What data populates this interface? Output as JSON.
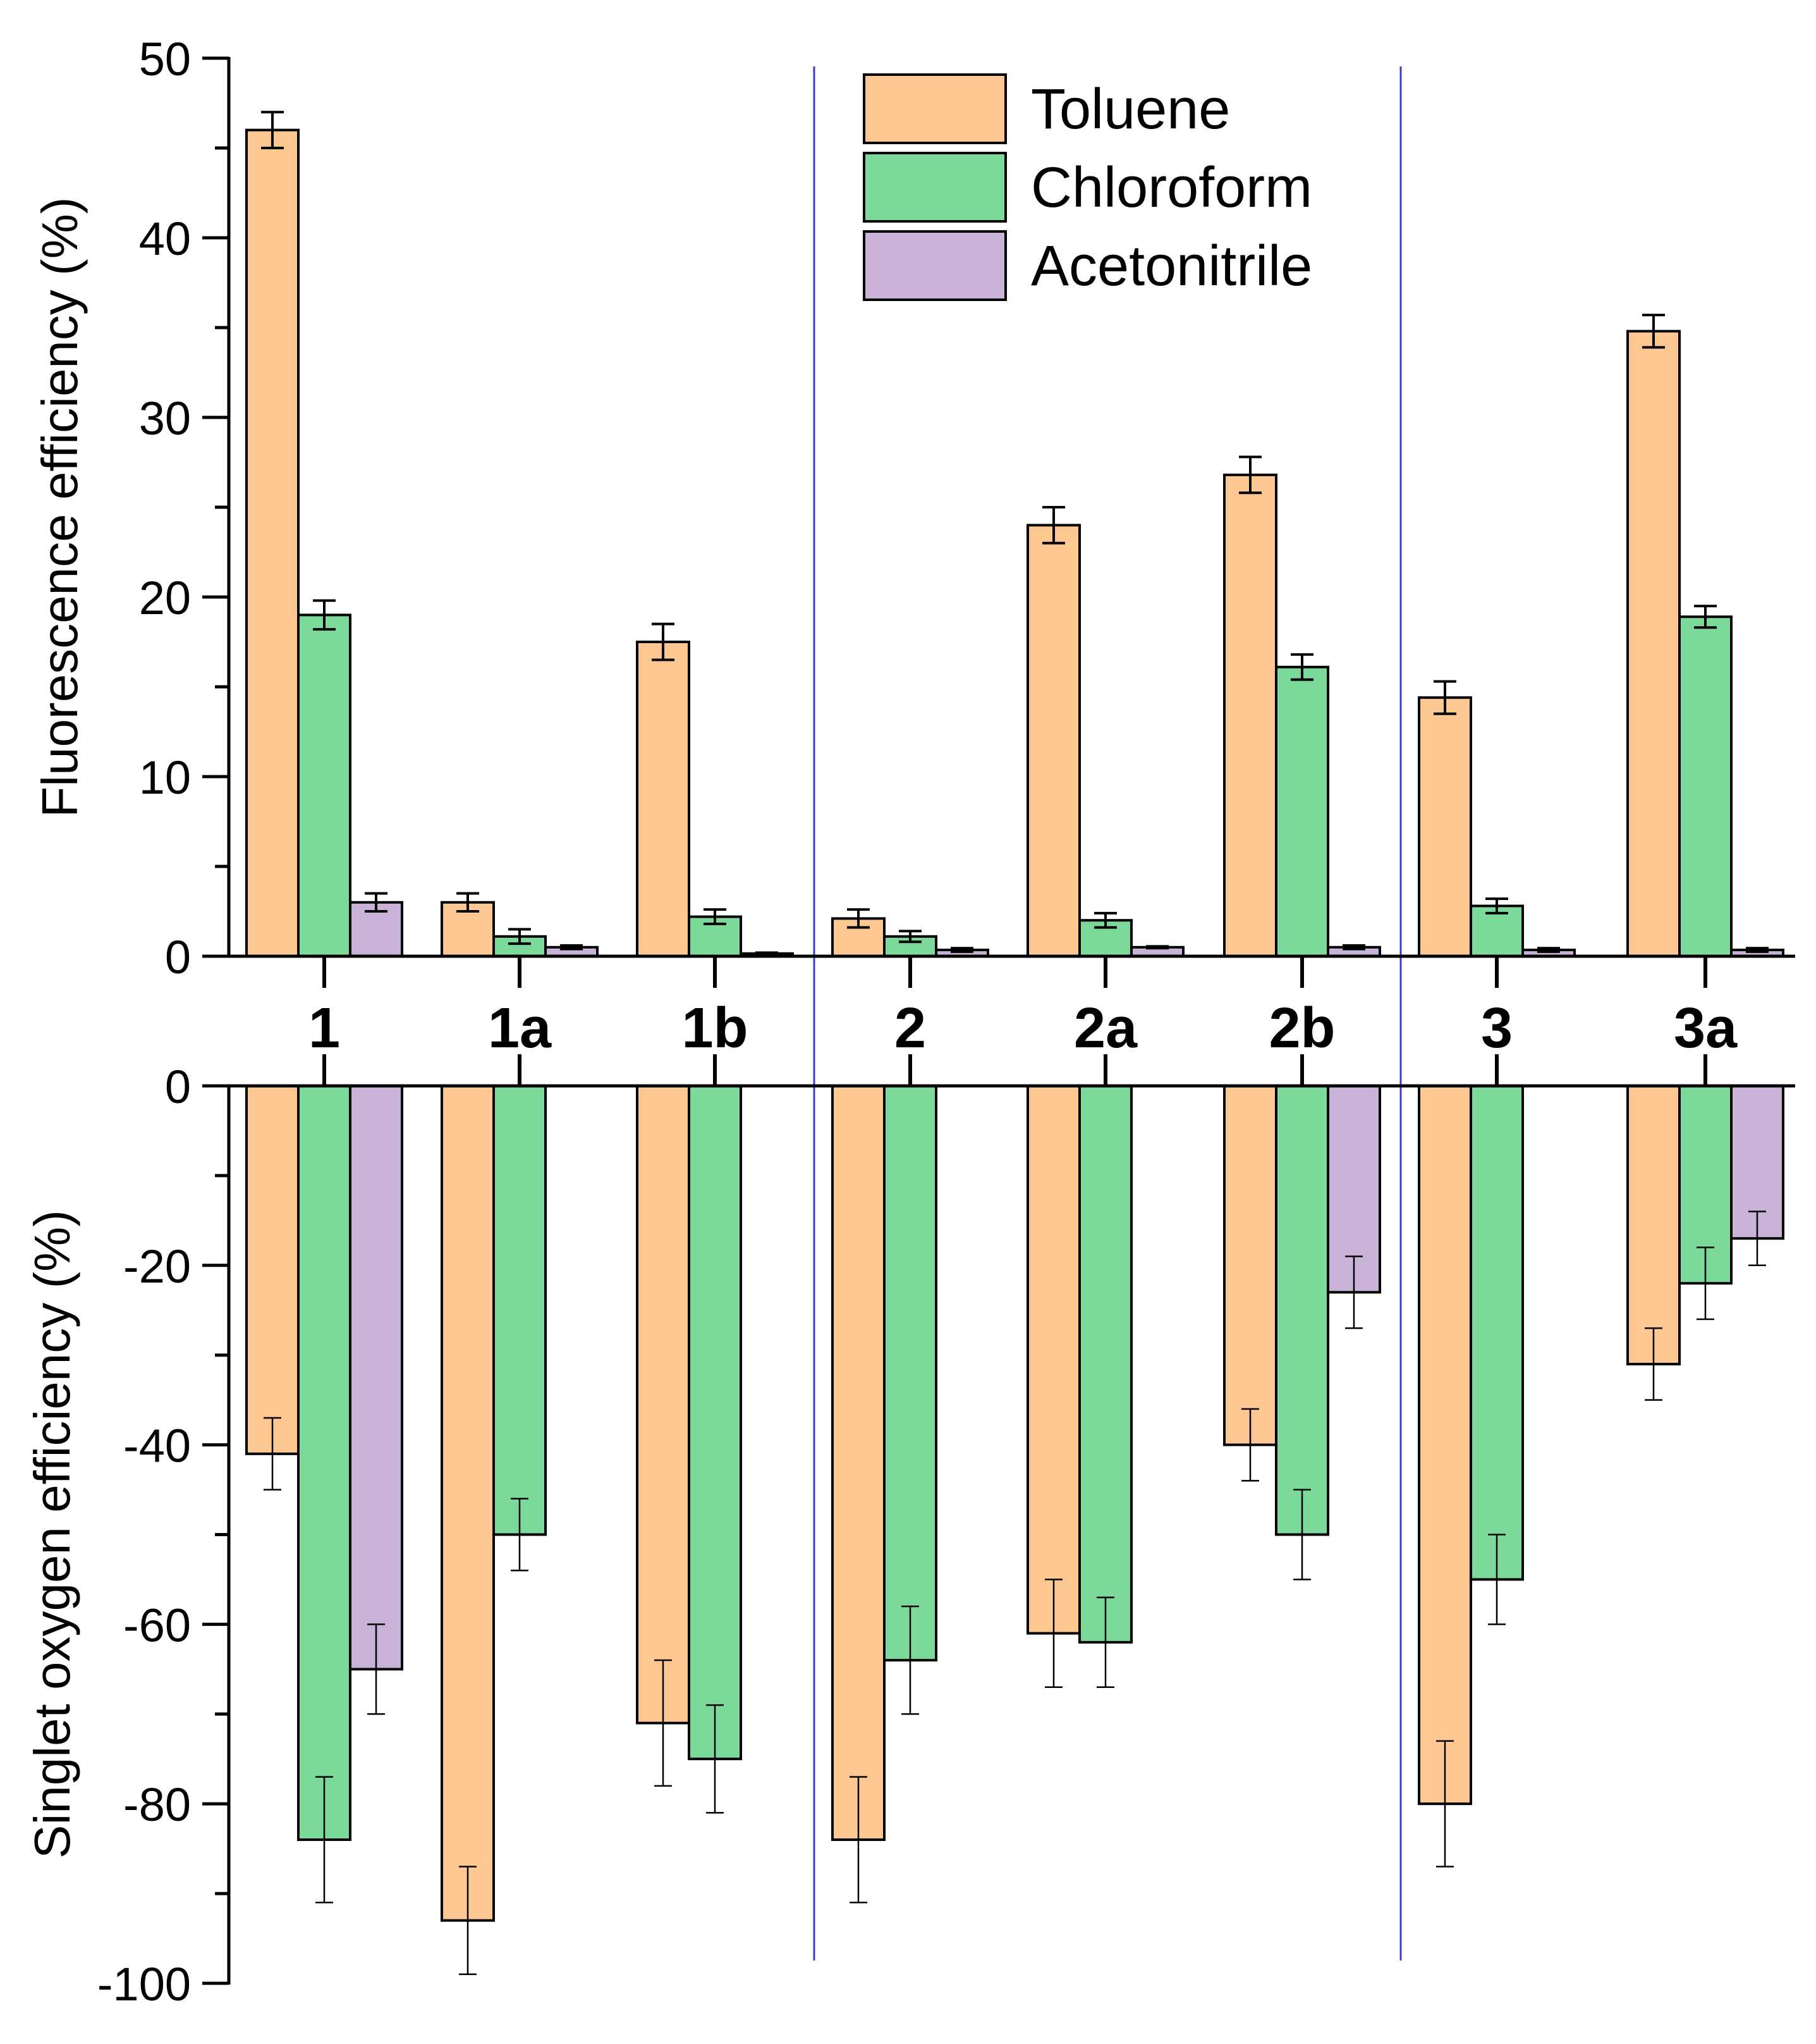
{
  "colors": {
    "toluene": "#fdc792",
    "chloroform": "#7bd99a",
    "acetonitrile": "#c9b2d7",
    "divider": "#3b3bc8",
    "axis": "#000000"
  },
  "chart_data": {
    "type": "bar",
    "categories": [
      "1",
      "1a",
      "1b",
      "2",
      "2a",
      "2b",
      "3",
      "3a"
    ],
    "legend": {
      "position": "top-center",
      "entries": [
        "Toluene",
        "Chloroform",
        "Acetonitrile"
      ]
    },
    "top_panel": {
      "ylabel": "Fluorescence efficiency (%)",
      "ylim": [
        0,
        50
      ],
      "yticks": [
        0,
        10,
        20,
        30,
        40,
        50
      ],
      "ytick_labels": [
        "0",
        "10",
        "20",
        "30",
        "40",
        "50"
      ],
      "series": [
        {
          "name": "Toluene",
          "values": [
            46,
            3,
            17.5,
            2.1,
            24,
            26.8,
            14.4,
            34.8
          ],
          "errors": [
            1.0,
            0.5,
            1.0,
            0.5,
            1.0,
            1.0,
            0.9,
            0.9
          ]
        },
        {
          "name": "Chloroform",
          "values": [
            19,
            1.1,
            2.2,
            1.1,
            2.0,
            16.1,
            2.8,
            18.9
          ],
          "errors": [
            0.8,
            0.4,
            0.4,
            0.3,
            0.4,
            0.7,
            0.4,
            0.6
          ]
        },
        {
          "name": "Acetonitrile",
          "values": [
            3.0,
            0.5,
            0.15,
            0.35,
            0.5,
            0.5,
            0.35,
            0.35
          ],
          "errors": [
            0.5,
            0.1,
            0.05,
            0.1,
            0.05,
            0.1,
            0.1,
            0.1
          ]
        }
      ]
    },
    "bottom_panel": {
      "ylabel": "Singlet oxygen efficiency (%)",
      "ylim": [
        -100,
        0
      ],
      "yticks": [
        0,
        -20,
        -40,
        -60,
        -80,
        -100
      ],
      "ytick_labels": [
        "0",
        "-20",
        "-40",
        "-60",
        "-80",
        "-100"
      ],
      "series": [
        {
          "name": "Toluene",
          "values": [
            -41,
            -93,
            -71,
            -84,
            -61,
            -40,
            -80,
            -31
          ],
          "errors": [
            4,
            6,
            7,
            7,
            6,
            4,
            7,
            4
          ]
        },
        {
          "name": "Chloroform",
          "values": [
            -84,
            -50,
            -75,
            -64,
            -62,
            -50,
            -55,
            -22
          ],
          "errors": [
            7,
            4,
            6,
            6,
            5,
            5,
            5,
            4
          ]
        },
        {
          "name": "Acetonitrile",
          "values": [
            -65,
            null,
            null,
            null,
            null,
            -23,
            null,
            -17
          ],
          "errors": [
            5,
            null,
            null,
            null,
            null,
            4,
            null,
            3
          ]
        }
      ]
    },
    "group_dividers_after": [
      "1b",
      "2b"
    ]
  }
}
